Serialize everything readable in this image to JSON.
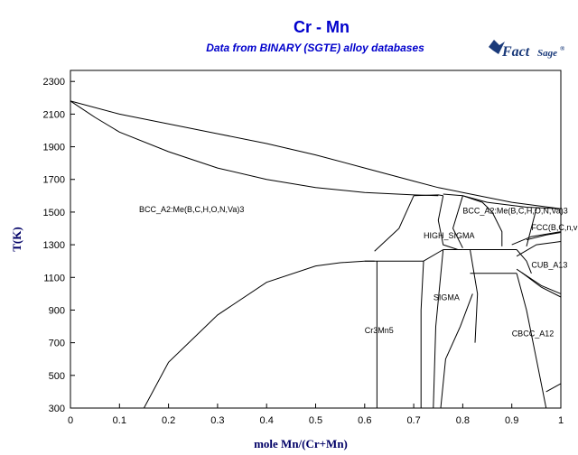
{
  "chart_data": {
    "type": "line",
    "title": "Cr - Mn",
    "subtitle": "Data from BINARY (SGTE) alloy databases",
    "xlabel": "mole Mn/(Cr+Mn)",
    "ylabel": "T(K)",
    "xlim": [
      0,
      1
    ],
    "ylim": [
      300,
      2400
    ],
    "xticks": [
      "0",
      "0.1",
      "0.2",
      "0.3",
      "0.4",
      "0.5",
      "0.6",
      "0.7",
      "0.8",
      "0.9",
      "1"
    ],
    "yticks": [
      "300",
      "500",
      "700",
      "900",
      "1100",
      "1300",
      "1500",
      "1700",
      "1900",
      "2100",
      "2300"
    ],
    "grid": false,
    "series": [
      {
        "x": [
          0,
          0.1,
          0.2,
          0.3,
          0.4,
          0.5,
          0.6,
          0.7,
          0.75,
          0.8,
          0.9,
          1.0
        ],
        "y": [
          2180,
          2100,
          2040,
          1980,
          1920,
          1850,
          1770,
          1690,
          1650,
          1620,
          1560,
          1520
        ]
      },
      {
        "x": [
          0,
          0.05,
          0.1,
          0.2,
          0.3,
          0.4,
          0.5,
          0.6,
          0.7,
          0.75
        ],
        "y": [
          2180,
          2080,
          1990,
          1870,
          1770,
          1700,
          1650,
          1620,
          1605,
          1600
        ]
      },
      {
        "x": [
          0.76,
          0.8,
          0.85
        ],
        "y": [
          1610,
          1600,
          1560
        ]
      },
      {
        "x": [
          0.85,
          0.93,
          1.0
        ],
        "y": [
          1560,
          1530,
          1520
        ]
      },
      {
        "x": [
          0.7,
          0.75,
          0.76
        ],
        "y": [
          1600,
          1605,
          1600
        ]
      },
      {
        "x": [
          0.62,
          0.67,
          0.7
        ],
        "y": [
          1260,
          1400,
          1600
        ]
      },
      {
        "x": [
          0.76,
          0.75,
          0.76,
          0.79
        ],
        "y": [
          1600,
          1450,
          1300,
          1270
        ]
      },
      {
        "x": [
          0.8,
          0.78,
          0.8
        ],
        "y": [
          1600,
          1400,
          1280
        ]
      },
      {
        "x": [
          0.8,
          0.84,
          0.86
        ],
        "y": [
          1600,
          1560,
          1500
        ]
      },
      {
        "x": [
          0.86,
          0.88,
          0.88
        ],
        "y": [
          1500,
          1380,
          1290
        ]
      },
      {
        "x": [
          0.93,
          0.95
        ],
        "y": [
          1290,
          1520
        ]
      },
      {
        "x": [
          0.9,
          0.94,
          1.0
        ],
        "y": [
          1300,
          1350,
          1380
        ]
      },
      {
        "x": [
          0.93,
          0.97,
          1.0
        ],
        "y": [
          1330,
          1360,
          1375
        ]
      },
      {
        "x": [
          0.91,
          0.95,
          1.0
        ],
        "y": [
          1230,
          1300,
          1320
        ]
      },
      {
        "x": [
          0.91,
          0.96,
          1.0
        ],
        "y": [
          1150,
          1050,
          1000
        ]
      },
      {
        "x": [
          0.92,
          0.96,
          1.0
        ],
        "y": [
          1130,
          1040,
          980
        ]
      },
      {
        "x": [
          0.15,
          0.2,
          0.3,
          0.4,
          0.5,
          0.55,
          0.6,
          0.62
        ],
        "y": [
          300,
          580,
          870,
          1070,
          1170,
          1190,
          1200,
          1200
        ]
      },
      {
        "x": [
          0.625,
          0.625
        ],
        "y": [
          1200,
          300
        ]
      },
      {
        "x": [
          0.6,
          0.72
        ],
        "y": [
          1200,
          1200
        ]
      },
      {
        "x": [
          0.72,
          0.715,
          0.715
        ],
        "y": [
          1200,
          900,
          300
        ]
      },
      {
        "x": [
          0.72,
          0.76
        ],
        "y": [
          1200,
          1270
        ]
      },
      {
        "x": [
          0.76,
          0.8
        ],
        "y": [
          1270,
          1270
        ]
      },
      {
        "x": [
          0.76,
          0.745,
          0.74
        ],
        "y": [
          1270,
          800,
          300
        ]
      },
      {
        "x": [
          0.815,
          0.83,
          0.825
        ],
        "y": [
          1270,
          1000,
          700
        ]
      },
      {
        "x": [
          0.755,
          0.765,
          0.795,
          0.82
        ],
        "y": [
          300,
          600,
          800,
          1000
        ]
      },
      {
        "x": [
          0.8,
          0.91
        ],
        "y": [
          1270,
          1270
        ]
      },
      {
        "x": [
          0.815,
          0.91
        ],
        "y": [
          1125,
          1125
        ]
      },
      {
        "x": [
          0.91,
          0.93,
          0.94
        ],
        "y": [
          1270,
          1200,
          1125
        ]
      },
      {
        "x": [
          0.91,
          0.93,
          0.95,
          0.97
        ],
        "y": [
          1125,
          900,
          600,
          300
        ]
      },
      {
        "x": [
          0.97,
          1.0
        ],
        "y": [
          400,
          450
        ]
      }
    ],
    "annotations": [
      {
        "text": "BCC_A2:Me(B,C,H,O,N,Va)3",
        "x": 0.14,
        "y": 1500
      },
      {
        "text": "BCC_A2:Me(B,C,H,O,N,Va)3",
        "x": 0.8,
        "y": 1490
      },
      {
        "text": "FCC(B,C,n,v",
        "x": 0.94,
        "y": 1390
      },
      {
        "text": "HIGH_SIGMA",
        "x": 0.72,
        "y": 1340
      },
      {
        "text": "CUB_A13",
        "x": 0.94,
        "y": 1160
      },
      {
        "text": "SIGMA",
        "x": 0.74,
        "y": 960
      },
      {
        "text": "Cr3Mn5",
        "x": 0.6,
        "y": 760
      },
      {
        "text": "CBCC_A12",
        "x": 0.9,
        "y": 740
      }
    ]
  },
  "logo": {
    "main": "Fact",
    "secondary": "Sage",
    "mark": "®"
  }
}
